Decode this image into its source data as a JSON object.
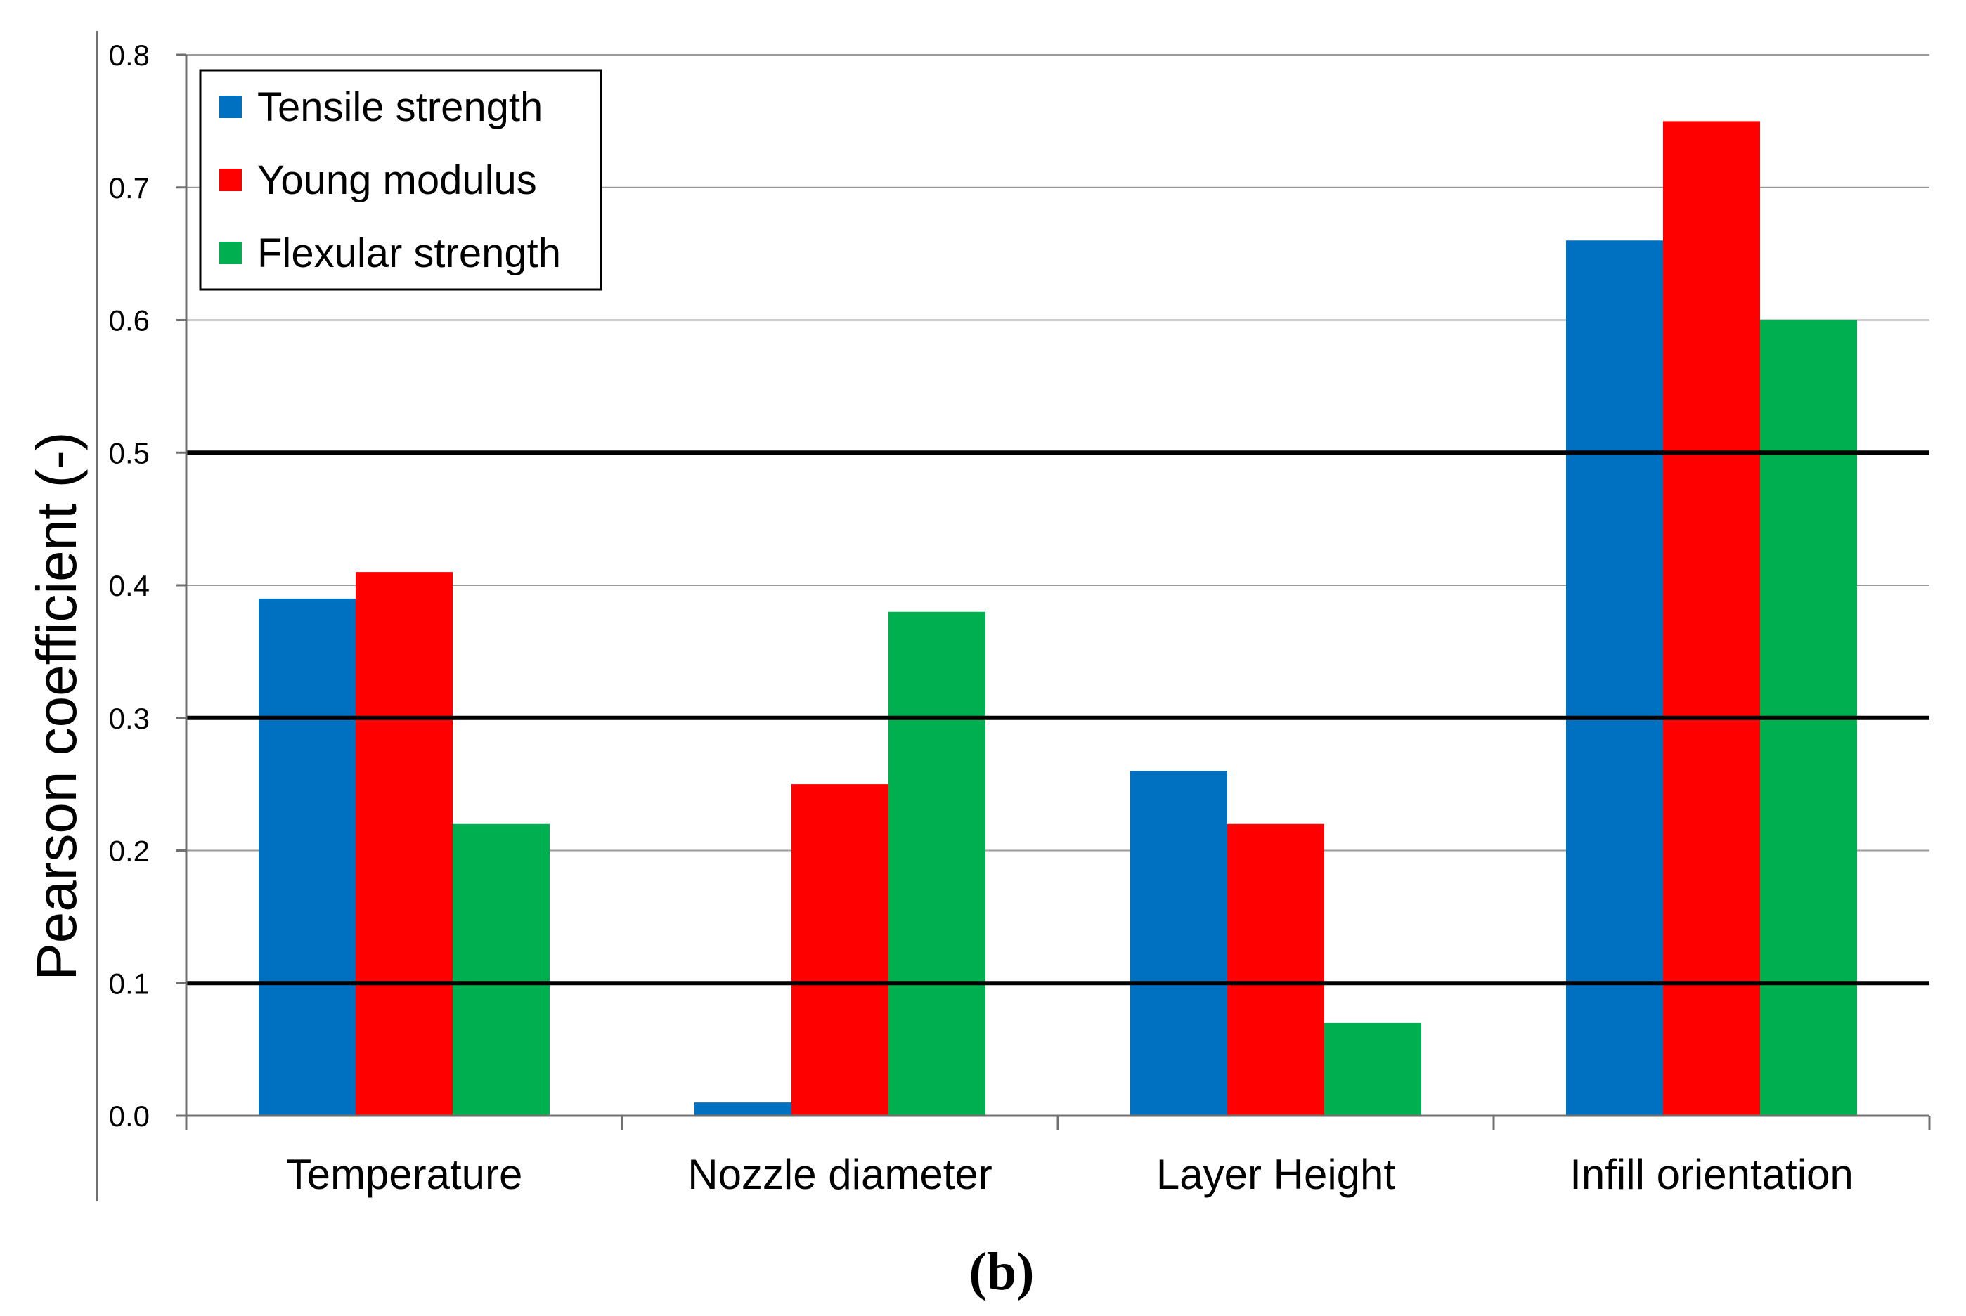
{
  "chart_data": {
    "type": "bar",
    "categories": [
      "Temperature",
      "Nozzle diameter",
      "Layer Height",
      "Infill orientation"
    ],
    "series": [
      {
        "name": "Tensile strength",
        "color": "#0070C0",
        "values": [
          0.39,
          0.01,
          0.26,
          0.66
        ]
      },
      {
        "name": "Young modulus",
        "color": "#FF0000",
        "values": [
          0.41,
          0.25,
          0.22,
          0.75
        ]
      },
      {
        "name": "Flexular strength",
        "color": "#00B050",
        "values": [
          0.22,
          0.38,
          0.07,
          0.6
        ]
      }
    ],
    "ylabel": "Pearson coefficient (-)",
    "xlabel": "",
    "ylim": [
      0.0,
      0.8
    ],
    "yticks": [
      "0.0",
      "0.1",
      "0.2",
      "0.3",
      "0.4",
      "0.5",
      "0.6",
      "0.7",
      "0.8"
    ],
    "threshold_lines": [
      0.1,
      0.3,
      0.5
    ],
    "grid": true,
    "legend_position": "top-left"
  },
  "caption": "(b)"
}
